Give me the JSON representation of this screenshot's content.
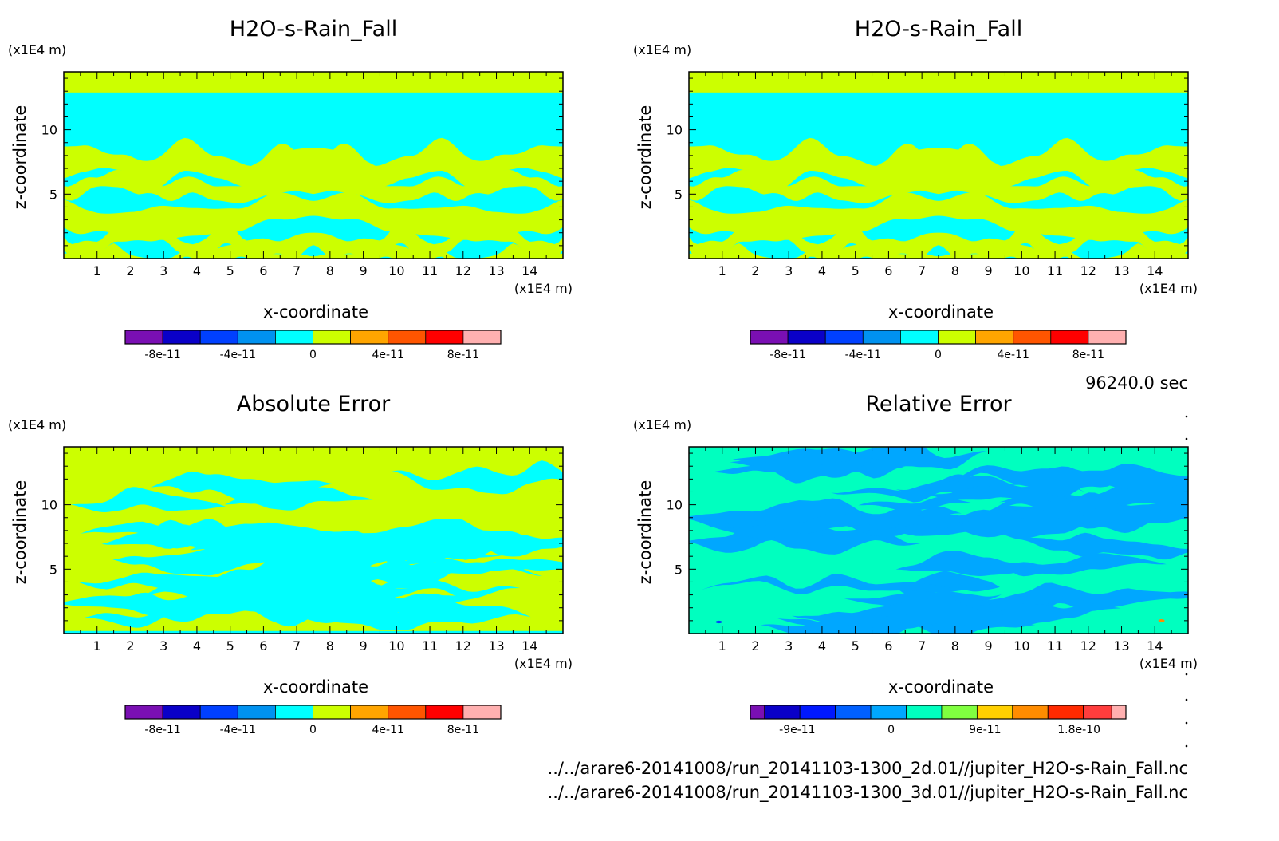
{
  "colors": {
    "bg_yellow": "#ccff00",
    "cyan": "#00ffff",
    "rel_teal": "#00ffbf",
    "rel_blue": "#00a7ff",
    "bins": [
      "#7a0fb3",
      "#0a00c8",
      "#0040ff",
      "#0092f0",
      "#00ffff",
      "#ccff00",
      "#ffa500",
      "#ff5500",
      "#ff0000",
      "#ffb0b0"
    ],
    "rel_bins": [
      "#7a0fb3",
      "#0a00c8",
      "#0018ff",
      "#0060ff",
      "#00a7ff",
      "#00ffbf",
      "#80ff40",
      "#ffd000",
      "#ff8c00",
      "#ff2a00",
      "#ff3d3d",
      "#ffb0b0"
    ]
  },
  "time_label": "96240.0 sec",
  "footer": {
    "line1": "../../arare6-20141008/run_20141103-1300_2d.01//jupiter_H2O-s-Rain_Fall.nc",
    "line2": "../../arare6-20141008/run_20141103-1300_3d.01//jupiter_H2O-s-Rain_Fall.nc"
  },
  "chart_data": [
    {
      "type": "heatmap",
      "title": "H2O-s-Rain_Fall",
      "xlabel": "x-coordinate",
      "ylabel": "z-coordinate",
      "x_unit": "(x1E4 m)",
      "y_unit": "(x1E4 m)",
      "xlim": [
        0,
        15
      ],
      "ylim": [
        0,
        14.5
      ],
      "x_ticks": [
        "1",
        "2",
        "3",
        "4",
        "5",
        "6",
        "7",
        "8",
        "9",
        "10",
        "11",
        "12",
        "13",
        "14"
      ],
      "y_ticks": [
        "5",
        "10"
      ],
      "colorbar": {
        "labels": [
          "-8e-11",
          "-4e-11",
          "0",
          "4e-11",
          "8e-11"
        ],
        "range": [
          -1e-10,
          1e-10
        ]
      },
      "field": "rain_2d"
    },
    {
      "type": "heatmap",
      "title": "H2O-s-Rain_Fall",
      "xlabel": "x-coordinate",
      "ylabel": "z-coordinate",
      "x_unit": "(x1E4 m)",
      "y_unit": "(x1E4 m)",
      "xlim": [
        0,
        15
      ],
      "ylim": [
        0,
        14.5
      ],
      "x_ticks": [
        "1",
        "2",
        "3",
        "4",
        "5",
        "6",
        "7",
        "8",
        "9",
        "10",
        "11",
        "12",
        "13",
        "14"
      ],
      "y_ticks": [
        "5",
        "10"
      ],
      "colorbar": {
        "labels": [
          "-8e-11",
          "-4e-11",
          "0",
          "4e-11",
          "8e-11"
        ],
        "range": [
          -1e-10,
          1e-10
        ]
      },
      "field": "rain_3d"
    },
    {
      "type": "heatmap",
      "title": "Absolute Error",
      "xlabel": "x-coordinate",
      "ylabel": "z-coordinate",
      "x_unit": "(x1E4 m)",
      "y_unit": "(x1E4 m)",
      "xlim": [
        0,
        15
      ],
      "ylim": [
        0,
        14.5
      ],
      "x_ticks": [
        "1",
        "2",
        "3",
        "4",
        "5",
        "6",
        "7",
        "8",
        "9",
        "10",
        "11",
        "12",
        "13",
        "14"
      ],
      "y_ticks": [
        "5",
        "10"
      ],
      "colorbar": {
        "labels": [
          "-8e-11",
          "-4e-11",
          "0",
          "4e-11",
          "8e-11"
        ],
        "range": [
          -1e-10,
          1e-10
        ]
      },
      "field": "abs_error"
    },
    {
      "type": "heatmap",
      "title": "Relative Error",
      "xlabel": "x-coordinate",
      "ylabel": "z-coordinate",
      "x_unit": "(x1E4 m)",
      "y_unit": "(x1E4 m)",
      "xlim": [
        0,
        15
      ],
      "ylim": [
        0,
        14.5
      ],
      "x_ticks": [
        "1",
        "2",
        "3",
        "4",
        "5",
        "6",
        "7",
        "8",
        "9",
        "10",
        "11",
        "12",
        "13",
        "14"
      ],
      "y_ticks": [
        "5",
        "10"
      ],
      "colorbar": {
        "labels": [
          "-9e-11",
          "0",
          "9e-11",
          "1.8e-10"
        ],
        "range": [
          -1.35e-10,
          2.25e-10
        ]
      },
      "field": "rel_error"
    }
  ]
}
